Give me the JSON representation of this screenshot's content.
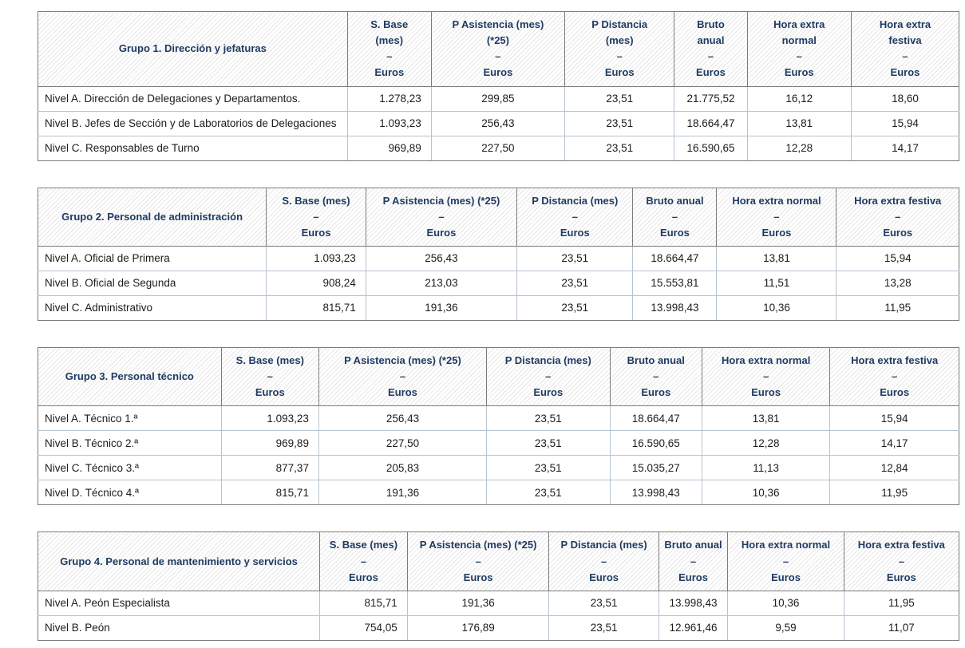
{
  "colors": {
    "header_text": "#1f3b62",
    "body_text": "#1c1c1c",
    "border_dark": "#7c7c7c",
    "border_light": "#b6c3d1",
    "hatch_line": "#e7e7e7",
    "background": "#ffffff"
  },
  "tables": [
    {
      "group_label": "Grupo 1. Dirección y jefaturas",
      "headers": [
        "S. Base\n(mes)\n–\nEuros",
        "P Asistencia (mes)\n(*25)\n–\nEuros",
        "P Distancia\n(mes)\n–\nEuros",
        "Bruto\nanual\n–\nEuros",
        "Hora extra\nnormal\n–\nEuros",
        "Hora extra\nfestiva\n–\nEuros"
      ],
      "rows": [
        {
          "label": "Nivel A. Dirección de Delegaciones y Departamentos.",
          "values": [
            "1.278,23",
            "299,85",
            "23,51",
            "21.775,52",
            "16,12",
            "18,60"
          ]
        },
        {
          "label": "Nivel B. Jefes de Sección y de Laboratorios de Delegaciones",
          "values": [
            "1.093,23",
            "256,43",
            "23,51",
            "18.664,47",
            "13,81",
            "15,94"
          ]
        },
        {
          "label": "Nivel C. Responsables de Turno",
          "values": [
            "969,89",
            "227,50",
            "23,51",
            "16.590,65",
            "12,28",
            "14,17"
          ]
        }
      ]
    },
    {
      "group_label": "Grupo 2. Personal de administración",
      "headers": [
        "S. Base (mes)\n–\nEuros",
        "P Asistencia (mes) (*25)\n–\nEuros",
        "P Distancia (mes)\n–\nEuros",
        "Bruto anual\n–\nEuros",
        "Hora extra normal\n–\nEuros",
        "Hora extra festiva\n–\nEuros"
      ],
      "rows": [
        {
          "label": "Nivel A. Oficial de Primera",
          "values": [
            "1.093,23",
            "256,43",
            "23,51",
            "18.664,47",
            "13,81",
            "15,94"
          ]
        },
        {
          "label": "Nivel B. Oficial de Segunda",
          "values": [
            "908,24",
            "213,03",
            "23,51",
            "15.553,81",
            "11,51",
            "13,28"
          ]
        },
        {
          "label": "Nivel C. Administrativo",
          "values": [
            "815,71",
            "191,36",
            "23,51",
            "13.998,43",
            "10,36",
            "11,95"
          ]
        }
      ]
    },
    {
      "group_label": "Grupo 3. Personal técnico",
      "headers": [
        "S. Base (mes)\n–\nEuros",
        "P Asistencia (mes) (*25)\n–\nEuros",
        "P Distancia (mes)\n–\nEuros",
        "Bruto anual\n–\nEuros",
        "Hora extra normal\n–\nEuros",
        "Hora extra festiva\n–\nEuros"
      ],
      "rows": [
        {
          "label": "Nivel A. Técnico 1.ª",
          "values": [
            "1.093,23",
            "256,43",
            "23,51",
            "18.664,47",
            "13,81",
            "15,94"
          ]
        },
        {
          "label": "Nivel B. Técnico 2.ª",
          "values": [
            "969,89",
            "227,50",
            "23,51",
            "16.590,65",
            "12,28",
            "14,17"
          ]
        },
        {
          "label": "Nivel C. Técnico 3.ª",
          "values": [
            "877,37",
            "205,83",
            "23,51",
            "15.035,27",
            "11,13",
            "12,84"
          ]
        },
        {
          "label": "Nivel D. Técnico 4.ª",
          "values": [
            "815,71",
            "191,36",
            "23,51",
            "13.998,43",
            "10,36",
            "11,95"
          ]
        }
      ]
    },
    {
      "group_label": "Grupo 4. Personal de mantenimiento y servicios",
      "headers": [
        "S. Base (mes)\n–\nEuros",
        "P Asistencia (mes) (*25)\n–\nEuros",
        "P Distancia (mes)\n–\nEuros",
        "Bruto anual\n–\nEuros",
        "Hora extra normal\n–\nEuros",
        "Hora extra festiva\n–\nEuros"
      ],
      "rows": [
        {
          "label": "Nivel A. Peón Especialista",
          "values": [
            "815,71",
            "191,36",
            "23,51",
            "13.998,43",
            "10,36",
            "11,95"
          ]
        },
        {
          "label": "Nivel B. Peón",
          "values": [
            "754,05",
            "176,89",
            "23,51",
            "12.961,46",
            "9,59",
            "11,07"
          ]
        }
      ]
    }
  ]
}
